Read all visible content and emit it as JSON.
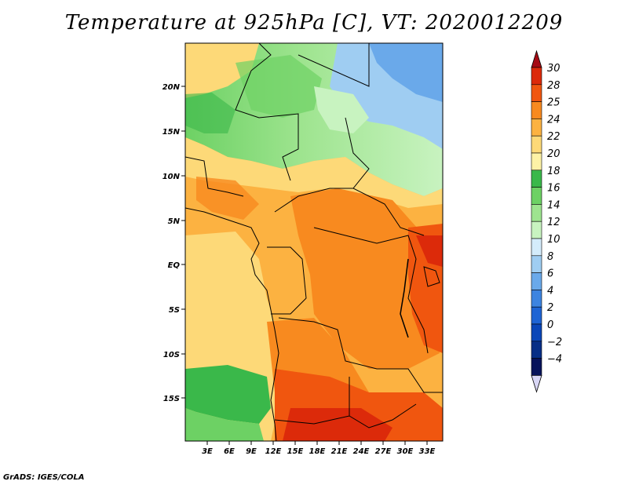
{
  "title": "Temperature at 925hPa [C], VT: 2020012209",
  "credit": "GrADS: IGES/COLA",
  "map": {
    "lat_ticks": [
      "20N",
      "15N",
      "10N",
      "5N",
      "EQ",
      "5S",
      "10S",
      "15S"
    ],
    "lon_ticks": [
      "3E",
      "6E",
      "9E",
      "12E",
      "15E",
      "18E",
      "21E",
      "24E",
      "27E",
      "30E",
      "33E"
    ]
  },
  "colorbar": {
    "labels": [
      "30",
      "28",
      "25",
      "24",
      "22",
      "20",
      "18",
      "16",
      "14",
      "12",
      "10",
      "8",
      "6",
      "4",
      "2",
      "0",
      "-2",
      "-4"
    ],
    "colors": [
      "#a50a14",
      "#dc2a0a",
      "#f0560f",
      "#f88a1f",
      "#fcb241",
      "#fdd978",
      "#fdf2a6",
      "#3ab84a",
      "#6dd164",
      "#9ee48f",
      "#c8f3c0",
      "#d4ecfb",
      "#9fcdf2",
      "#6aa9ea",
      "#3d84e0",
      "#1e64d4",
      "#0a46b8",
      "#062e86",
      "#07135a",
      "#d8d6f5"
    ]
  },
  "palette": {
    "border": "#000000"
  }
}
